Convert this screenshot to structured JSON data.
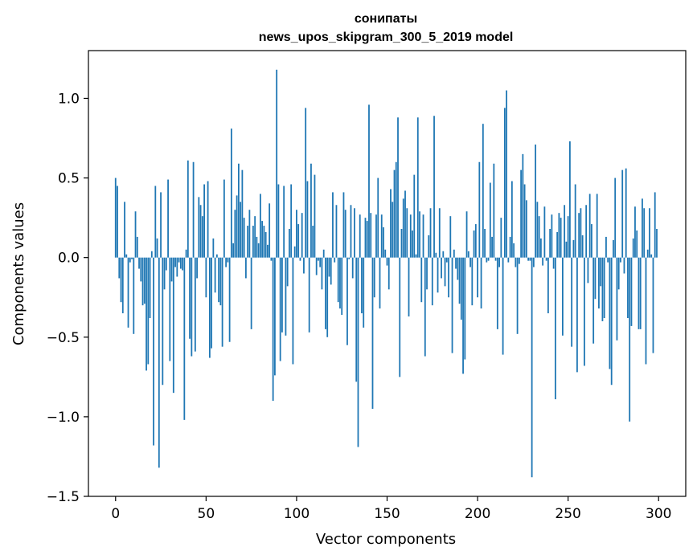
{
  "chart_data": {
    "type": "bar",
    "title": "сонипаты",
    "subtitle": "news_upos_skipgram_300_5_2019 model",
    "xlabel": "Vector components",
    "ylabel": "Components values",
    "xlim": [
      -15,
      315
    ],
    "ylim": [
      -1.5,
      1.3
    ],
    "x_ticks": [
      0,
      50,
      100,
      150,
      200,
      250,
      300
    ],
    "x_tick_labels": [
      "0",
      "50",
      "100",
      "150",
      "200",
      "250",
      "300"
    ],
    "y_ticks": [
      -1.5,
      -1.0,
      -0.5,
      0.0,
      0.5,
      1.0
    ],
    "y_tick_labels": [
      "−1.5",
      "−1.0",
      "−0.5",
      "0.0",
      "0.5",
      "1.0"
    ],
    "grid": false,
    "legend": "none",
    "bar_color": "#1f77b4",
    "x": "0..299 (component index)",
    "values": [
      0.5,
      0.45,
      -0.13,
      -0.28,
      -0.35,
      0.35,
      0.02,
      -0.44,
      -0.03,
      -0.01,
      -0.48,
      0.29,
      0.13,
      -0.07,
      -0.15,
      -0.3,
      -0.29,
      -0.71,
      -0.67,
      -0.38,
      0.04,
      -1.18,
      0.45,
      0.12,
      -1.32,
      0.41,
      -0.8,
      -0.2,
      -0.08,
      0.49,
      -0.65,
      -0.15,
      -0.85,
      -0.06,
      -0.12,
      -0.03,
      -0.07,
      -0.08,
      -1.02,
      0.05,
      0.61,
      -0.51,
      -0.62,
      0.6,
      -0.59,
      -0.13,
      0.38,
      0.33,
      0.26,
      0.46,
      -0.25,
      0.48,
      -0.63,
      -0.57,
      0.12,
      -0.22,
      0.02,
      -0.28,
      -0.3,
      -0.56,
      0.49,
      -0.06,
      -0.03,
      -0.53,
      0.81,
      0.09,
      0.3,
      0.39,
      0.59,
      0.35,
      0.55,
      0.25,
      -0.13,
      0.2,
      0.3,
      -0.45,
      0.2,
      0.26,
      0.13,
      0.09,
      0.4,
      0.23,
      0.2,
      0.16,
      0.08,
      0.34,
      -0.02,
      -0.9,
      -0.74,
      1.18,
      0.46,
      -0.65,
      -0.47,
      0.45,
      -0.49,
      -0.18,
      0.18,
      0.46,
      -0.67,
      0.07,
      0.3,
      0.21,
      -0.02,
      0.28,
      -0.1,
      0.94,
      0.48,
      -0.47,
      0.59,
      0.2,
      0.52,
      -0.11,
      -0.02,
      -0.06,
      -0.2,
      0.05,
      -0.45,
      -0.5,
      -0.12,
      -0.17,
      0.41,
      -0.03,
      0.33,
      -0.28,
      -0.32,
      -0.36,
      0.41,
      0.3,
      -0.55,
      -0.01,
      0.33,
      -0.13,
      0.31,
      -0.78,
      -1.19,
      0.27,
      -0.35,
      -0.44,
      0.25,
      0.23,
      0.96,
      0.28,
      -0.95,
      -0.25,
      0.27,
      0.5,
      -0.32,
      0.27,
      0.19,
      0.05,
      -0.05,
      -0.2,
      0.43,
      0.35,
      0.55,
      0.6,
      0.88,
      -0.75,
      0.18,
      0.37,
      0.42,
      0.31,
      -0.37,
      0.27,
      0.17,
      0.52,
      0.02,
      0.88,
      0.29,
      -0.28,
      0.27,
      -0.62,
      -0.2,
      0.14,
      0.31,
      -0.3,
      0.89,
      0.03,
      -0.22,
      0.31,
      -0.13,
      0.04,
      -0.18,
      -0.03,
      -0.25,
      0.26,
      -0.6,
      0.05,
      -0.07,
      -0.14,
      -0.29,
      -0.39,
      -0.73,
      -0.64,
      0.29,
      0.04,
      -0.06,
      -0.3,
      0.17,
      0.21,
      -0.25,
      0.6,
      -0.32,
      0.84,
      0.18,
      -0.03,
      -0.02,
      0.47,
      0.13,
      0.59,
      -0.02,
      -0.45,
      -0.06,
      0.25,
      -0.61,
      0.94,
      1.05,
      -0.03,
      0.13,
      0.48,
      0.09,
      -0.06,
      -0.48,
      -0.04,
      0.55,
      0.65,
      0.46,
      0.36,
      -0.02,
      -0.02,
      -1.38,
      -0.06,
      0.71,
      0.35,
      0.26,
      0.12,
      -0.05,
      0.32,
      -0.02,
      -0.35,
      0.18,
      0.27,
      -0.07,
      -0.89,
      0.16,
      0.28,
      0.25,
      -0.49,
      0.33,
      0.1,
      0.26,
      0.73,
      -0.56,
      0.11,
      0.46,
      -0.72,
      0.28,
      0.31,
      0.14,
      -0.68,
      0.33,
      -0.16,
      0.4,
      0.21,
      -0.54,
      -0.26,
      0.4,
      -0.32,
      -0.18,
      -0.4,
      -0.38,
      0.13,
      -0.03,
      -0.7,
      -0.8,
      0.11,
      0.5,
      -0.52,
      -0.2,
      -0.03,
      0.55,
      -0.1,
      0.56,
      -0.38,
      -1.03,
      -0.43,
      0.12,
      0.32,
      0.17,
      -0.45,
      -0.45,
      0.37,
      0.31,
      -0.67,
      0.05,
      0.31,
      0.02,
      -0.6,
      0.41,
      0.18
    ]
  }
}
